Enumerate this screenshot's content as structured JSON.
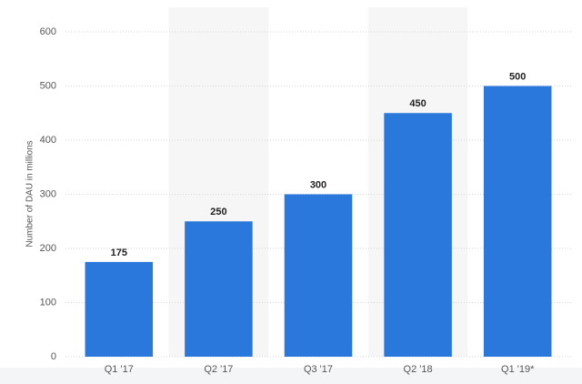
{
  "chart_data": {
    "type": "bar",
    "y_label": "Number of DAU in millions",
    "categories": [
      "Q1 '17",
      "Q2 '17",
      "Q3 '17",
      "Q2 '18",
      "Q1 '19*"
    ],
    "values": [
      175,
      250,
      300,
      450,
      500
    ],
    "color": "#2b78dc",
    "ylim": [
      0,
      600
    ],
    "yticks": [
      0,
      100,
      200,
      300,
      400,
      500,
      600
    ],
    "grid": true,
    "alternate_shading": true
  }
}
